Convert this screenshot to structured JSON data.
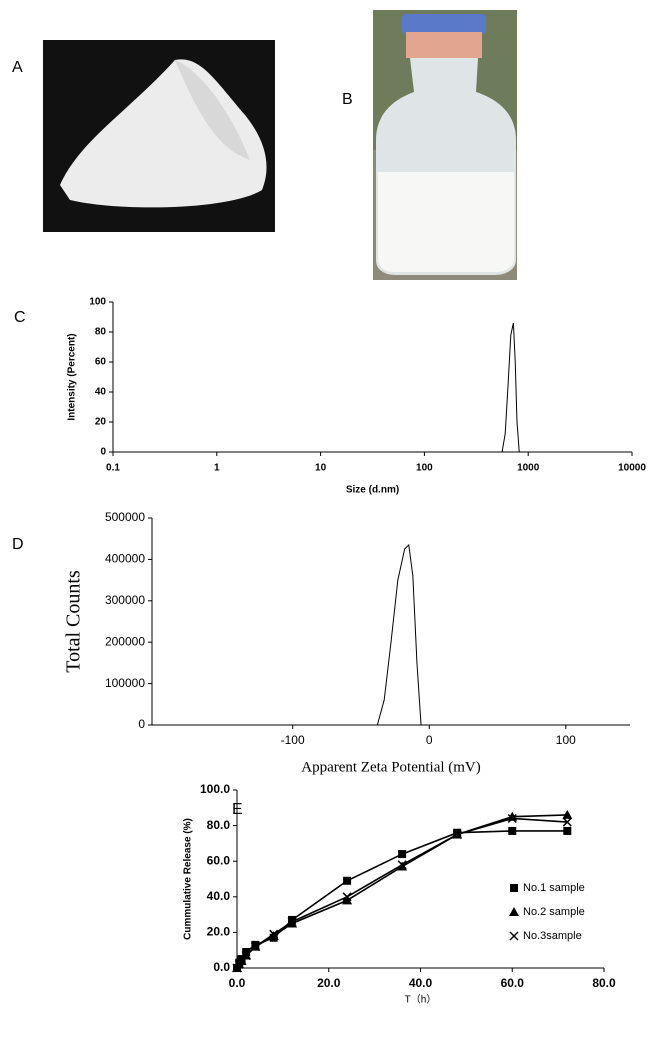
{
  "panel_labels": [
    "A",
    "B",
    "C",
    "D",
    "E"
  ],
  "chart_data": [
    {
      "type": "line",
      "xlabel": "Size (d.nm)",
      "ylabel": "Intensity (Percent)",
      "xscale": "log",
      "xlim": [
        0.1,
        10000
      ],
      "xticks": [
        0.1,
        1,
        10,
        100,
        1000,
        10000
      ],
      "ylim": [
        0,
        100
      ],
      "yticks": [
        0,
        20,
        40,
        60,
        80,
        100
      ],
      "series": [
        {
          "color": "#000000",
          "x": [
            560,
            600,
            640,
            680,
            720,
            750,
            780,
            820
          ],
          "values": [
            0,
            12,
            45,
            78,
            86,
            60,
            20,
            0
          ]
        }
      ]
    },
    {
      "type": "line",
      "xlabel": "Apparent Zeta Potential (mV)",
      "ylabel": "Total Counts",
      "xlim": [
        -203,
        147
      ],
      "xticks": [
        -100,
        0,
        100
      ],
      "ylim": [
        0,
        500000
      ],
      "yticks": [
        0,
        100000,
        200000,
        300000,
        400000,
        500000
      ],
      "series": [
        {
          "color": "#000000",
          "x": [
            -38,
            -33,
            -28,
            -23,
            -18,
            -15,
            -12,
            -9,
            -6
          ],
          "values": [
            0,
            60000,
            200000,
            350000,
            425000,
            435000,
            360000,
            150000,
            0
          ]
        }
      ]
    },
    {
      "type": "line",
      "xlabel": "T（h）",
      "ylabel": "Cummulative Release (%)",
      "legend": "right",
      "xlim": [
        0,
        80
      ],
      "xticks": [
        {
          "value": 0,
          "label": "0.0"
        },
        {
          "value": 20,
          "label": "20.0"
        },
        {
          "value": 40,
          "label": "40.0"
        },
        {
          "value": 60,
          "label": "60.0"
        },
        {
          "value": 80,
          "label": "80.0"
        }
      ],
      "ylim": [
        0,
        100
      ],
      "yticks": [
        {
          "value": 0,
          "label": "0.0"
        },
        {
          "value": 20,
          "label": "20.0"
        },
        {
          "value": 40,
          "label": "40.0"
        },
        {
          "value": 60,
          "label": "60.0"
        },
        {
          "value": 80,
          "label": "80.0"
        },
        {
          "value": 100,
          "label": "100.0"
        }
      ],
      "series": [
        {
          "name": "No.1 sample",
          "color": "#000000",
          "marker": "square",
          "x": [
            0,
            0.5,
            1,
            2,
            4,
            8,
            12,
            24,
            36,
            48,
            60,
            72
          ],
          "values": [
            0,
            3,
            5,
            9,
            13,
            17,
            27,
            49,
            64,
            76,
            77,
            77
          ]
        },
        {
          "name": "No.2 sample",
          "color": "#000000",
          "marker": "triangle",
          "x": [
            0,
            0.5,
            1,
            2,
            4,
            8,
            12,
            24,
            36,
            48,
            60,
            72
          ],
          "values": [
            0,
            2,
            4,
            7,
            12,
            18,
            25,
            38,
            57,
            75,
            85,
            86
          ]
        },
        {
          "name": "No.3sample",
          "color": "#000000",
          "marker": "cross",
          "x": [
            0,
            0.5,
            1,
            2,
            4,
            8,
            12,
            24,
            36,
            48,
            60,
            72
          ],
          "values": [
            0,
            2,
            4,
            7,
            12,
            19,
            26,
            40,
            58,
            75,
            84,
            82
          ]
        }
      ]
    }
  ]
}
